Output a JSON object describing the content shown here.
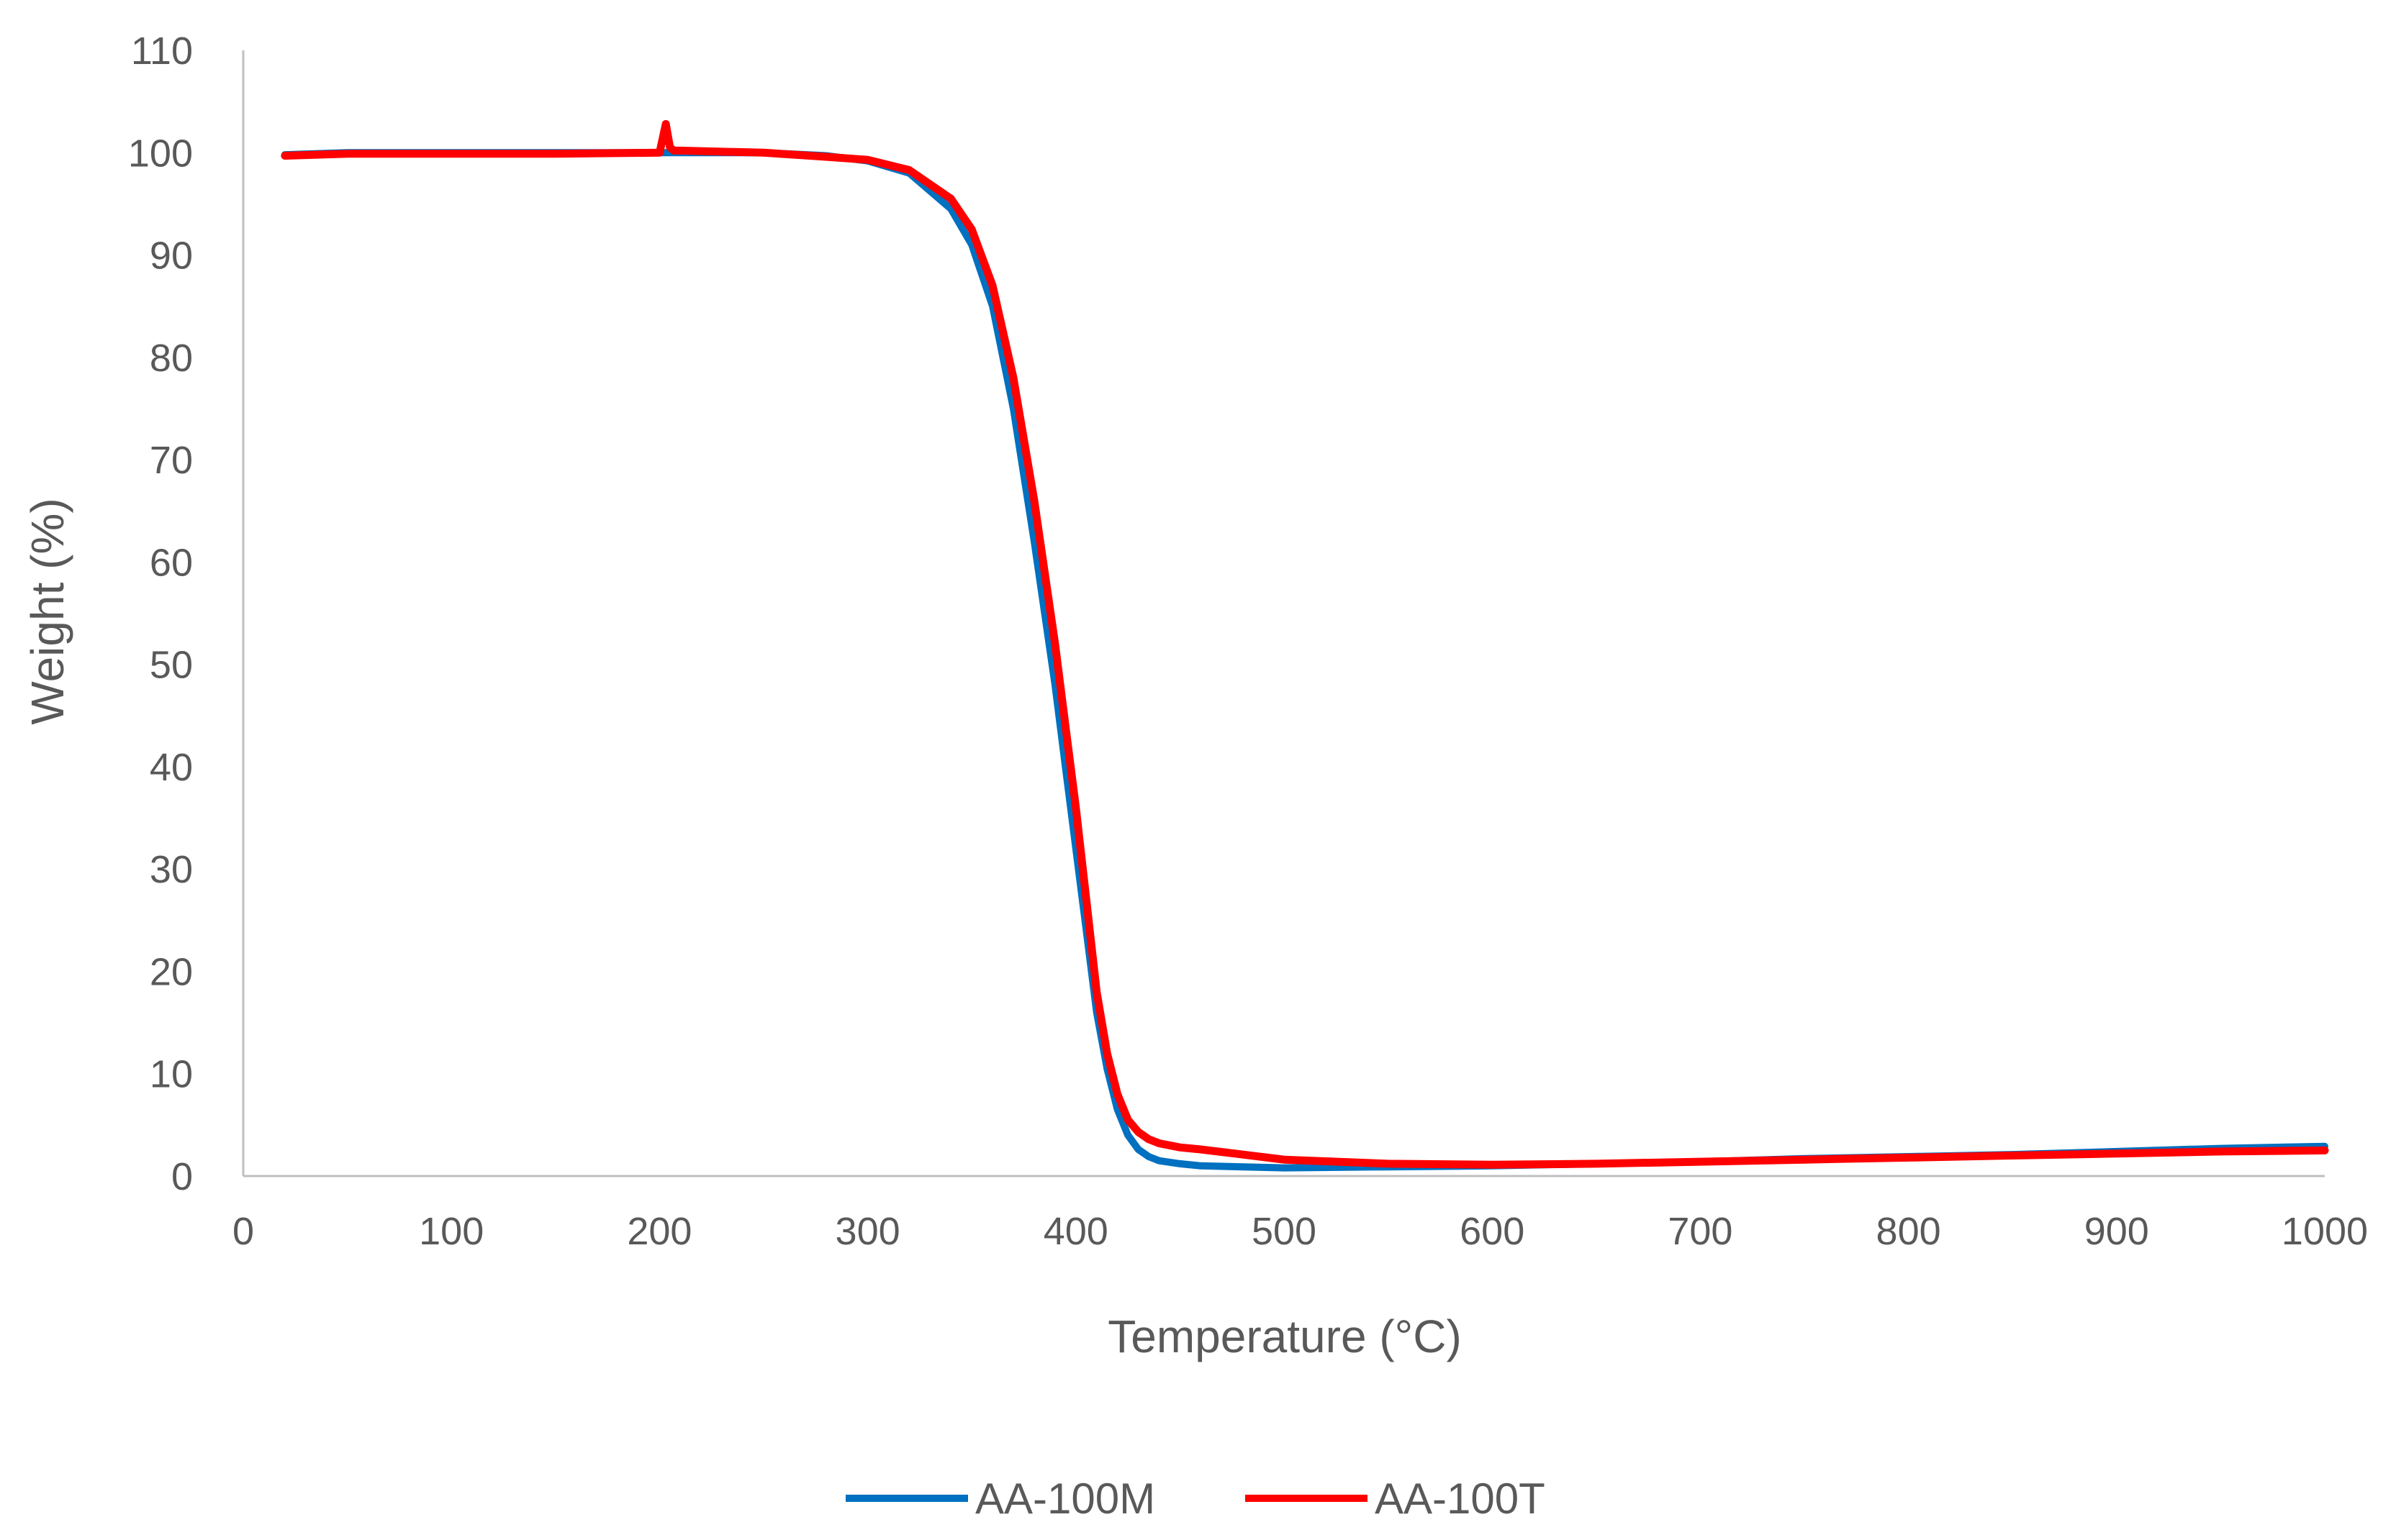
{
  "chart_data": {
    "type": "line",
    "xlabel": "Temperature (°C)",
    "ylabel": "Weight (%)",
    "xlim": [
      0,
      1000
    ],
    "ylim": [
      0,
      110
    ],
    "x_ticks": [
      0,
      100,
      200,
      300,
      400,
      500,
      600,
      700,
      800,
      900,
      1000
    ],
    "y_ticks": [
      0,
      10,
      20,
      30,
      40,
      50,
      60,
      70,
      80,
      90,
      100,
      110
    ],
    "grid": false,
    "legend_position": "bottom",
    "series": [
      {
        "name": "AA-100M",
        "color": "#0070c0",
        "x": [
          20,
          50,
          100,
          150,
          200,
          250,
          280,
          300,
          320,
          340,
          350,
          360,
          370,
          380,
          390,
          395,
          400,
          405,
          410,
          415,
          420,
          425,
          430,
          435,
          440,
          450,
          460,
          480,
          500,
          550,
          600,
          650,
          700,
          750,
          800,
          850,
          900,
          950,
          1000
        ],
        "y": [
          99.8,
          100,
          100,
          100,
          100,
          100,
          99.7,
          99.2,
          98,
          94.5,
          91,
          85,
          75,
          62,
          48,
          40,
          32,
          24,
          16,
          10.5,
          6.5,
          4,
          2.6,
          1.9,
          1.5,
          1.2,
          1.0,
          0.9,
          0.8,
          0.9,
          1.0,
          1.2,
          1.4,
          1.7,
          1.9,
          2.1,
          2.4,
          2.7,
          2.9
        ]
      },
      {
        "name": "AA-100T",
        "color": "#ff0000",
        "x": [
          20,
          50,
          100,
          150,
          200,
          203,
          205,
          207,
          210,
          250,
          280,
          300,
          320,
          340,
          350,
          360,
          370,
          380,
          390,
          395,
          400,
          405,
          410,
          415,
          420,
          425,
          430,
          435,
          440,
          450,
          460,
          480,
          500,
          550,
          600,
          650,
          700,
          750,
          800,
          850,
          900,
          950,
          1000
        ],
        "y": [
          99.7,
          99.9,
          99.9,
          99.9,
          100,
          102.8,
          100.5,
          100.2,
          100.2,
          100,
          99.6,
          99.3,
          98.3,
          95.5,
          92.5,
          87,
          78,
          66,
          52,
          44,
          36,
          27,
          18,
          12,
          8,
          5.5,
          4.3,
          3.6,
          3.2,
          2.8,
          2.6,
          2.1,
          1.6,
          1.2,
          1.1,
          1.2,
          1.4,
          1.6,
          1.8,
          2.0,
          2.2,
          2.4,
          2.5
        ]
      }
    ]
  }
}
